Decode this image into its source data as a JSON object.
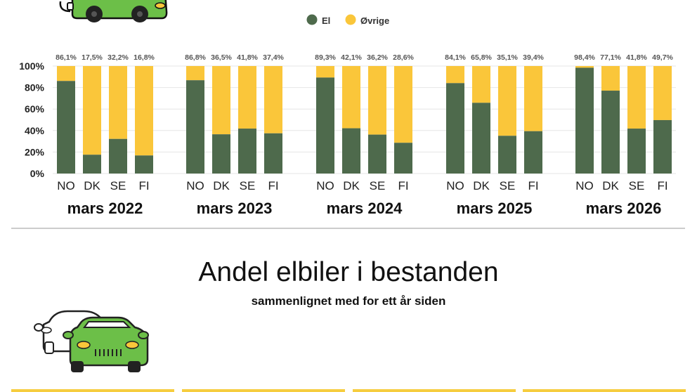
{
  "chart_data": {
    "type": "bar",
    "stacked": true,
    "legend": [
      {
        "name": "El",
        "color": "#4e6a4c"
      },
      {
        "name": "Øvrige",
        "color": "#fac63a"
      }
    ],
    "y_ticks": [
      "0%",
      "20%",
      "40%",
      "60%",
      "80%",
      "100%"
    ],
    "ylim": [
      0,
      100
    ],
    "grid": true,
    "groups": [
      {
        "label": "mars 2022",
        "bars": [
          {
            "category": "NO",
            "value": 86.1,
            "value_label": "86,1%"
          },
          {
            "category": "DK",
            "value": 17.5,
            "value_label": "17,5%"
          },
          {
            "category": "SE",
            "value": 32.2,
            "value_label": "32,2%"
          },
          {
            "category": "FI",
            "value": 16.8,
            "value_label": "16,8%"
          }
        ]
      },
      {
        "label": "mars 2023",
        "bars": [
          {
            "category": "NO",
            "value": 86.8,
            "value_label": "86,8%"
          },
          {
            "category": "DK",
            "value": 36.5,
            "value_label": "36,5%"
          },
          {
            "category": "SE",
            "value": 41.8,
            "value_label": "41,8%"
          },
          {
            "category": "FI",
            "value": 37.4,
            "value_label": "37,4%"
          }
        ]
      },
      {
        "label": "mars 2024",
        "bars": [
          {
            "category": "NO",
            "value": 89.3,
            "value_label": "89,3%"
          },
          {
            "category": "DK",
            "value": 42.1,
            "value_label": "42,1%"
          },
          {
            "category": "SE",
            "value": 36.2,
            "value_label": "36,2%"
          },
          {
            "category": "FI",
            "value": 28.6,
            "value_label": "28,6%"
          }
        ]
      },
      {
        "label": "mars 2025",
        "bars": [
          {
            "category": "NO",
            "value": 84.1,
            "value_label": "84,1%"
          },
          {
            "category": "DK",
            "value": 65.8,
            "value_label": "65,8%"
          },
          {
            "category": "SE",
            "value": 35.1,
            "value_label": "35,1%"
          },
          {
            "category": "FI",
            "value": 39.4,
            "value_label": "39,4%"
          }
        ]
      },
      {
        "label": "mars 2026",
        "bars": [
          {
            "category": "NO",
            "value": 98.4,
            "value_label": "98,4%"
          },
          {
            "category": "DK",
            "value": 77.1,
            "value_label": "77,1%"
          },
          {
            "category": "SE",
            "value": 41.8,
            "value_label": "41,8%"
          },
          {
            "category": "FI",
            "value": 49.7,
            "value_label": "49,7%"
          }
        ]
      }
    ]
  },
  "section2": {
    "title": "Andel elbiler i bestanden",
    "subtitle": "sammenlignet med for ett år siden"
  },
  "icons": {
    "top_car": "green-car-icon",
    "bottom_cars": "two-cars-icon"
  },
  "colors": {
    "car_green": "#6cbf48",
    "divider": "#999999",
    "card_border": "#f6cd3f"
  }
}
